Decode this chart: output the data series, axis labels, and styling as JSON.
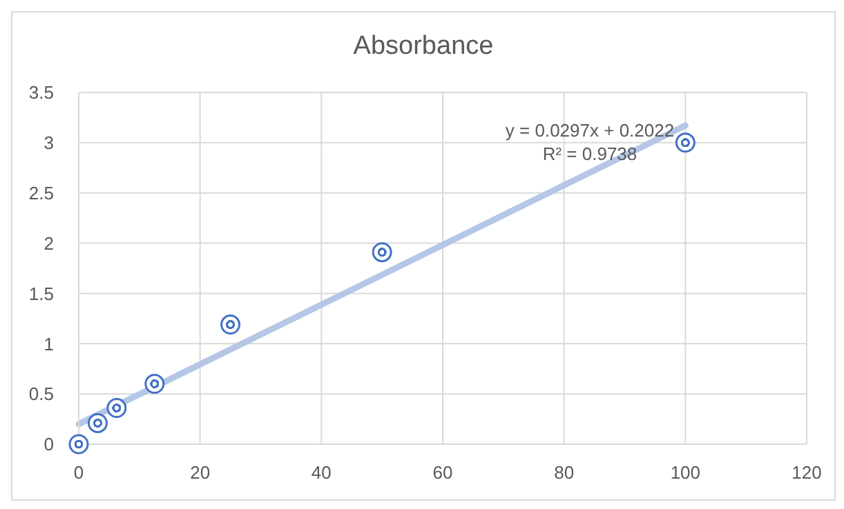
{
  "chart_data": {
    "type": "scatter",
    "title": "Absorbance",
    "x": [
      0,
      3.125,
      6.25,
      12.5,
      25,
      50,
      100
    ],
    "series": [
      {
        "color": "#4472c4",
        "values": [
          0,
          0.21,
          0.36,
          0.6,
          1.19,
          1.91,
          3.0
        ],
        "marker": "circle"
      },
      {
        "type": "line",
        "color": "#b4c7e7",
        "x": [
          0,
          100
        ],
        "values": [
          0.2,
          3.17
        ]
      }
    ],
    "annotations": [
      "y = 0.0297x + 0.2022",
      "R² = 0.9738"
    ],
    "xlim": [
      0,
      120
    ],
    "xticks": [
      0,
      20,
      40,
      60,
      80,
      100,
      120
    ],
    "ylim": [
      0,
      3.5
    ],
    "yticks": [
      0,
      0.5,
      1,
      1.5,
      2,
      2.5,
      3,
      3.5
    ],
    "grid": true,
    "legend": false
  }
}
